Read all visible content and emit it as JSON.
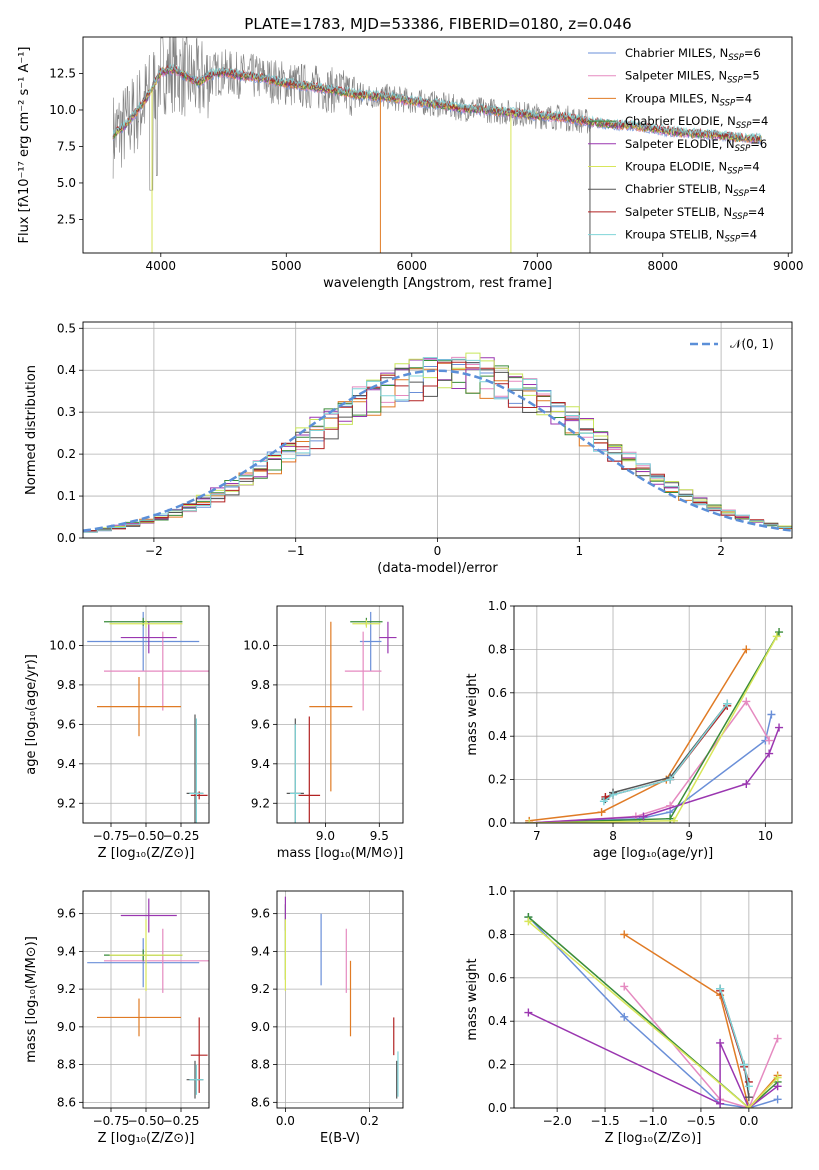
{
  "figure": {
    "title": "PLATE=1783, MJD=53386, FIBERID=0180, z=0.046"
  },
  "chart_data": [
    {
      "id": "spectrum",
      "type": "line",
      "xlabel": "wavelength [Angstrom, rest frame]",
      "ylabel": "Flux [fλ10⁻¹⁷ erg cm⁻² s⁻¹ A⁻¹]",
      "xlim": [
        3380,
        9030
      ],
      "ylim": [
        0.2,
        15.0
      ],
      "xticks": [
        4000,
        5000,
        6000,
        7000,
        8000,
        9000
      ],
      "yticks": [
        2.5,
        5.0,
        7.5,
        10.0,
        12.5
      ],
      "grid": false,
      "legend_placement": "top-right",
      "legend": [
        {
          "label": "Chabrier MILES, N",
          "sub": "SSP",
          "tail": "=6",
          "color": "#6a8fd8"
        },
        {
          "label": "Salpeter MILES, N",
          "sub": "SSP",
          "tail": "=5",
          "color": "#e58ac0"
        },
        {
          "label": "Kroupa MILES, N",
          "sub": "SSP",
          "tail": "=4",
          "color": "#e07b25"
        },
        {
          "label": "Chabrier ELODIE, N",
          "sub": "SSP",
          "tail": "=4",
          "color": "#3a8c3a"
        },
        {
          "label": "Salpeter ELODIE, N",
          "sub": "SSP",
          "tail": "=6",
          "color": "#9a36b0"
        },
        {
          "label": "Kroupa ELODIE, N",
          "sub": "SSP",
          "tail": "=4",
          "color": "#d8e65a"
        },
        {
          "label": "Chabrier STELIB, N",
          "sub": "SSP",
          "tail": "=4",
          "color": "#555555"
        },
        {
          "label": "Salpeter STELIB, N",
          "sub": "SSP",
          "tail": "=4",
          "color": "#b22222"
        },
        {
          "label": "Kroupa STELIB, N",
          "sub": "SSP",
          "tail": "=4",
          "color": "#7fd4d8"
        }
      ],
      "data_color": "#808080",
      "continuum": {
        "x": [
          3620,
          3700,
          3800,
          3900,
          4000,
          4100,
          4200,
          4300,
          4400,
          4500,
          4600,
          4800,
          5000,
          5200,
          5400,
          5600,
          5800,
          6000,
          6200,
          6400,
          6600,
          6800,
          7000,
          7200,
          7400,
          7600,
          7800,
          8000,
          8200,
          8400,
          8600,
          8790
        ],
        "y": [
          8.3,
          8.8,
          9.8,
          11.0,
          12.6,
          12.8,
          12.3,
          11.9,
          12.4,
          12.6,
          12.4,
          12.2,
          11.8,
          11.6,
          11.3,
          11.0,
          10.9,
          10.6,
          10.4,
          10.1,
          10.0,
          9.8,
          9.6,
          9.5,
          9.2,
          9.0,
          8.9,
          8.6,
          8.4,
          8.3,
          8.1,
          8.0
        ]
      },
      "spikes": [
        {
          "x": 5750,
          "y": 0.2,
          "color": "#e07b25"
        },
        {
          "x": 6790,
          "y": 0.2,
          "color": "#d8e65a"
        },
        {
          "x": 3930,
          "y": 0.2,
          "color": "#d8e65a"
        },
        {
          "x": 7420,
          "y": 0.2,
          "color": "#555555"
        }
      ]
    },
    {
      "id": "residuals",
      "type": "line",
      "xlabel": "(data-model)/error",
      "ylabel": "Normed distribution",
      "xlim": [
        -2.5,
        2.5
      ],
      "ylim": [
        0.0,
        0.515
      ],
      "xticks": [
        -2,
        -1,
        0,
        1,
        2
      ],
      "yticks": [
        0.0,
        0.1,
        0.2,
        0.3,
        0.4,
        0.5
      ],
      "grid": true,
      "legend_placement": "top-right",
      "legend": [
        {
          "label": "𝒩(0, 1)",
          "color": "#5b8fd8"
        }
      ],
      "normal_curve": {
        "mean": 0,
        "sigma": 1
      },
      "bin_width": 0.1,
      "series": [
        {
          "name": "Chabrier MILES",
          "color": "#6a8fd8",
          "scale": 1.0,
          "phase": 0.3
        },
        {
          "name": "Salpeter MILES",
          "color": "#e58ac0",
          "scale": 1.02,
          "phase": 1.1
        },
        {
          "name": "Kroupa MILES",
          "color": "#e07b25",
          "scale": 0.98,
          "phase": 2.0
        },
        {
          "name": "Chabrier ELODIE",
          "color": "#3a8c3a",
          "scale": 1.01,
          "phase": 2.7
        },
        {
          "name": "Salpeter ELODIE",
          "color": "#9a36b0",
          "scale": 1.03,
          "phase": 3.6
        },
        {
          "name": "Kroupa ELODIE",
          "color": "#c8e65a",
          "scale": 1.04,
          "phase": 4.4
        },
        {
          "name": "Chabrier STELIB",
          "color": "#555555",
          "scale": 1.0,
          "phase": 5.1
        },
        {
          "name": "Salpeter STELIB",
          "color": "#b22222",
          "scale": 0.99,
          "phase": 5.9
        },
        {
          "name": "Kroupa STELIB",
          "color": "#7fd4d8",
          "scale": 1.02,
          "phase": 0.8
        }
      ]
    },
    {
      "id": "age-vs-Z",
      "type": "scatter",
      "xlabel": "Z [log₁₀(Z/Z⊙)]",
      "ylabel": "age  [log₁₀(age/yr)]",
      "xlim": [
        -0.95,
        -0.05
      ],
      "ylim": [
        9.1,
        10.2
      ],
      "xticks": [
        -0.75,
        -0.5,
        -0.25
      ],
      "xticklabels": [
        "−0.75",
        "−0.50",
        "−0.25"
      ],
      "yticks": [
        9.2,
        9.4,
        9.6,
        9.8,
        10.0
      ],
      "grid": true,
      "points": [
        {
          "x": -0.52,
          "y": 10.02,
          "xerr": 0.4,
          "yerr": 0.15,
          "color": "#6a8fd8"
        },
        {
          "x": -0.38,
          "y": 9.87,
          "xerr": 0.42,
          "yerr": 0.2,
          "color": "#e58ac0"
        },
        {
          "x": -0.55,
          "y": 9.69,
          "xerr": 0.3,
          "yerr": 0.15,
          "color": "#e07b25"
        },
        {
          "x": -0.52,
          "y": 10.12,
          "xerr": 0.28,
          "yerr": 0.02,
          "color": "#3a8c3a"
        },
        {
          "x": -0.48,
          "y": 10.04,
          "xerr": 0.2,
          "yerr": 0.08,
          "color": "#9a36b0"
        },
        {
          "x": -0.5,
          "y": 10.11,
          "xerr": 0.26,
          "yerr": 0.02,
          "color": "#d8e65a"
        },
        {
          "x": -0.15,
          "y": 9.25,
          "xerr": 0.06,
          "yerr": 0.4,
          "color": "#555555"
        },
        {
          "x": -0.12,
          "y": 9.24,
          "xerr": 0.06,
          "yerr": 0.02,
          "color": "#b22222"
        },
        {
          "x": -0.14,
          "y": 9.25,
          "xerr": 0.05,
          "yerr": 0.38,
          "color": "#7fd4d8"
        }
      ]
    },
    {
      "id": "age-vs-mass",
      "type": "scatter",
      "xlabel": "mass [log₁₀(M/M⊙)]",
      "ylabel": "",
      "xlim": [
        8.55,
        9.72
      ],
      "ylim": [
        9.1,
        10.2
      ],
      "xticks": [
        9.0,
        9.5
      ],
      "yticks": [
        9.2,
        9.4,
        9.6,
        9.8,
        10.0
      ],
      "grid": true,
      "points": [
        {
          "x": 9.42,
          "y": 10.02,
          "xerr": 0.1,
          "yerr": 0.15,
          "color": "#6a8fd8"
        },
        {
          "x": 9.35,
          "y": 9.87,
          "xerr": 0.17,
          "yerr": 0.2,
          "color": "#e58ac0"
        },
        {
          "x": 9.05,
          "y": 9.69,
          "xerr": 0.2,
          "yerr": 0.43,
          "color": "#e07b25"
        },
        {
          "x": 9.38,
          "y": 10.12,
          "xerr": 0.15,
          "yerr": 0.02,
          "color": "#3a8c3a"
        },
        {
          "x": 9.58,
          "y": 10.04,
          "xerr": 0.08,
          "yerr": 0.08,
          "color": "#9a36b0"
        },
        {
          "x": 9.38,
          "y": 10.11,
          "xerr": 0.13,
          "yerr": 0.02,
          "color": "#d8e65a"
        },
        {
          "x": 8.72,
          "y": 9.25,
          "xerr": 0.08,
          "yerr": 0.38,
          "color": "#555555"
        },
        {
          "x": 8.85,
          "y": 9.24,
          "xerr": 0.1,
          "yerr": 0.4,
          "color": "#b22222"
        },
        {
          "x": 8.72,
          "y": 9.25,
          "xerr": 0.05,
          "yerr": 0.35,
          "color": "#7fd4d8"
        }
      ]
    },
    {
      "id": "massweight-vs-age",
      "type": "line",
      "xlabel": "age  [log₁₀(age/yr)]",
      "ylabel": "mass weight",
      "xlim": [
        6.7,
        10.35
      ],
      "ylim": [
        0.0,
        1.0
      ],
      "xticks": [
        7,
        8,
        9,
        10
      ],
      "yticks": [
        0.0,
        0.2,
        0.4,
        0.6,
        0.8,
        1.0
      ],
      "grid": true,
      "series": [
        {
          "name": "Chabrier MILES",
          "color": "#6a8fd8",
          "x": [
            6.9,
            8.35,
            8.75,
            10.0,
            10.08
          ],
          "y": [
            0.0,
            0.02,
            0.05,
            0.38,
            0.5
          ]
        },
        {
          "name": "Salpeter MILES",
          "color": "#e58ac0",
          "x": [
            6.9,
            8.3,
            8.75,
            9.75,
            10.05
          ],
          "y": [
            0.0,
            0.03,
            0.08,
            0.56,
            0.38
          ]
        },
        {
          "name": "Kroupa MILES",
          "color": "#e07b25",
          "x": [
            6.9,
            7.85,
            8.7,
            9.75
          ],
          "y": [
            0.01,
            0.05,
            0.2,
            0.8
          ]
        },
        {
          "name": "Chabrier ELODIE",
          "color": "#3a8c3a",
          "x": [
            6.9,
            8.75,
            10.18
          ],
          "y": [
            0.0,
            0.02,
            0.88
          ]
        },
        {
          "name": "Salpeter ELODIE",
          "color": "#9a36b0",
          "x": [
            6.9,
            8.4,
            9.75,
            10.05,
            10.18
          ],
          "y": [
            0.0,
            0.03,
            0.18,
            0.32,
            0.44
          ]
        },
        {
          "name": "Kroupa ELODIE",
          "color": "#d8e65a",
          "x": [
            6.9,
            8.8,
            10.15
          ],
          "y": [
            0.0,
            0.01,
            0.86
          ]
        },
        {
          "name": "Chabrier STELIB",
          "color": "#555555",
          "x": [
            7.9,
            8.0,
            8.75,
            9.5
          ],
          "y": [
            0.11,
            0.14,
            0.21,
            0.55
          ]
        },
        {
          "name": "Salpeter STELIB",
          "color": "#b22222",
          "x": [
            7.9,
            8.0,
            8.75,
            9.5
          ],
          "y": [
            0.12,
            0.13,
            0.2,
            0.54
          ]
        },
        {
          "name": "Kroupa STELIB",
          "color": "#7fd4d8",
          "x": [
            7.88,
            8.0,
            8.75,
            9.5
          ],
          "y": [
            0.1,
            0.13,
            0.2,
            0.55
          ]
        }
      ]
    },
    {
      "id": "mass-vs-Z",
      "type": "scatter",
      "xlabel": "Z [log₁₀(Z/Z⊙)]",
      "ylabel": "mass [log₁₀(M/M⊙)]",
      "xlim": [
        -0.95,
        -0.05
      ],
      "ylim": [
        8.57,
        9.72
      ],
      "xticks": [
        -0.75,
        -0.5,
        -0.25
      ],
      "xticklabels": [
        "−0.75",
        "−0.50",
        "−0.25"
      ],
      "yticks": [
        8.6,
        8.8,
        9.0,
        9.2,
        9.4,
        9.6
      ],
      "grid": true,
      "points": [
        {
          "x": -0.52,
          "y": 9.34,
          "xerr": 0.4,
          "yerr": 0.13,
          "color": "#6a8fd8"
        },
        {
          "x": -0.38,
          "y": 9.35,
          "xerr": 0.42,
          "yerr": 0.17,
          "color": "#e58ac0"
        },
        {
          "x": -0.55,
          "y": 9.05,
          "xerr": 0.3,
          "yerr": 0.1,
          "color": "#e07b25"
        },
        {
          "x": -0.52,
          "y": 9.38,
          "xerr": 0.28,
          "yerr": 0.03,
          "color": "#3a8c3a"
        },
        {
          "x": -0.48,
          "y": 9.59,
          "xerr": 0.2,
          "yerr": 0.09,
          "color": "#9a36b0"
        },
        {
          "x": -0.5,
          "y": 9.38,
          "xerr": 0.26,
          "yerr": 0.19,
          "color": "#d8e65a"
        },
        {
          "x": -0.15,
          "y": 8.72,
          "xerr": 0.06,
          "yerr": 0.1,
          "color": "#555555"
        },
        {
          "x": -0.12,
          "y": 8.85,
          "xerr": 0.06,
          "yerr": 0.2,
          "color": "#b22222"
        },
        {
          "x": -0.14,
          "y": 8.72,
          "xerr": 0.05,
          "yerr": 0.08,
          "color": "#7fd4d8"
        }
      ]
    },
    {
      "id": "mass-vs-EBV",
      "type": "scatter",
      "xlabel": "E(B-V)",
      "ylabel": "",
      "xlim": [
        -0.02,
        0.28
      ],
      "ylim": [
        8.57,
        9.72
      ],
      "xticks": [
        0.0,
        0.2
      ],
      "yticks": [
        8.6,
        8.8,
        9.0,
        9.2,
        9.4,
        9.6
      ],
      "grid": true,
      "points": [
        {
          "x": 0.085,
          "y": 9.41,
          "xerr": 0,
          "yerr": 0.19,
          "color": "#6a8fd8"
        },
        {
          "x": 0.145,
          "y": 9.35,
          "xerr": 0,
          "yerr": 0.17,
          "color": "#e58ac0"
        },
        {
          "x": 0.155,
          "y": 9.15,
          "xerr": 0,
          "yerr": 0.2,
          "color": "#e07b25"
        },
        {
          "x": 0.0,
          "y": 9.45,
          "xerr": 0,
          "yerr": 0.2,
          "color": "#3a8c3a"
        },
        {
          "x": 0.0,
          "y": 9.6,
          "xerr": 0,
          "yerr": 0.09,
          "color": "#9a36b0"
        },
        {
          "x": 0.0,
          "y": 9.38,
          "xerr": 0,
          "yerr": 0.19,
          "color": "#d8e65a"
        },
        {
          "x": 0.265,
          "y": 8.72,
          "xerr": 0,
          "yerr": 0.1,
          "color": "#555555"
        },
        {
          "x": 0.258,
          "y": 8.95,
          "xerr": 0,
          "yerr": 0.1,
          "color": "#b22222"
        },
        {
          "x": 0.268,
          "y": 8.75,
          "xerr": 0,
          "yerr": 0.12,
          "color": "#7fd4d8"
        }
      ]
    },
    {
      "id": "massweight-vs-Z",
      "type": "line",
      "xlabel": "Z [log₁₀(Z/Z⊙)]",
      "ylabel": "mass weight",
      "xlim": [
        -2.45,
        0.45
      ],
      "ylim": [
        0.0,
        1.0
      ],
      "xticks": [
        -2.0,
        -1.5,
        -1.0,
        -0.5,
        0.0
      ],
      "xticklabels": [
        "−2.0",
        "−1.5",
        "−1.0",
        "−0.5",
        "0.0"
      ],
      "yticks": [
        0.0,
        0.2,
        0.4,
        0.6,
        0.8,
        1.0
      ],
      "grid": true,
      "series": [
        {
          "name": "Chabrier MILES",
          "color": "#6a8fd8",
          "x": [
            -2.3,
            -1.3,
            -0.3,
            0.0,
            0.3
          ],
          "y": [
            0.88,
            0.42,
            0.02,
            0.0,
            0.04
          ]
        },
        {
          "name": "Salpeter MILES",
          "color": "#e58ac0",
          "x": [
            -1.3,
            -0.3,
            0.0,
            0.3
          ],
          "y": [
            0.56,
            0.04,
            0.0,
            0.32
          ]
        },
        {
          "name": "Kroupa MILES",
          "color": "#e07b25",
          "x": [
            -1.3,
            -0.3,
            0.0,
            0.3
          ],
          "y": [
            0.8,
            0.52,
            0.0,
            0.15
          ]
        },
        {
          "name": "Chabrier ELODIE",
          "color": "#3a8c3a",
          "x": [
            -2.3,
            0.0,
            0.3
          ],
          "y": [
            0.88,
            0.0,
            0.12
          ]
        },
        {
          "name": "Salpeter ELODIE",
          "color": "#9a36b0",
          "x": [
            -2.3,
            -0.3,
            -0.3,
            0.0,
            0.3
          ],
          "y": [
            0.44,
            0.02,
            0.3,
            0.0,
            0.1
          ]
        },
        {
          "name": "Kroupa ELODIE",
          "color": "#d8e65a",
          "x": [
            -2.3,
            0.0,
            0.3
          ],
          "y": [
            0.86,
            0.0,
            0.14
          ]
        },
        {
          "name": "Chabrier STELIB",
          "color": "#555555",
          "x": [
            -0.3,
            -0.05,
            0.0
          ],
          "y": [
            0.55,
            0.2,
            0.05
          ]
        },
        {
          "name": "Salpeter STELIB",
          "color": "#b22222",
          "x": [
            -0.3,
            -0.05,
            0.0
          ],
          "y": [
            0.54,
            0.19,
            0.12
          ]
        },
        {
          "name": "Kroupa STELIB",
          "color": "#7fd4d8",
          "x": [
            -0.3,
            -0.05,
            0.0
          ],
          "y": [
            0.55,
            0.2,
            0.1
          ]
        }
      ]
    }
  ]
}
